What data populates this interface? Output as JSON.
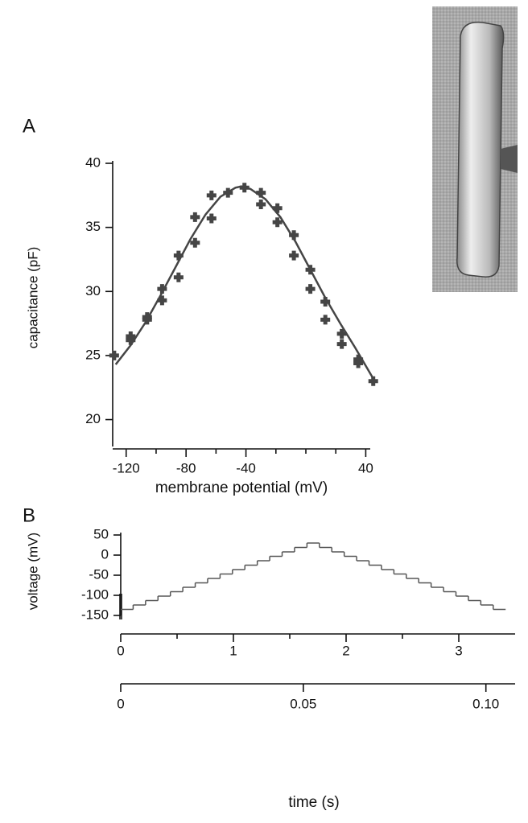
{
  "chart_data": [
    {
      "type": "scatter",
      "panel_label": "A",
      "x_label": "membrane potential (mV)",
      "y_label": "capacitance (pF)",
      "xlim": [
        -129,
        43
      ],
      "ylim": [
        17.9,
        40
      ],
      "xticks": [
        -120,
        -80,
        -40,
        40
      ],
      "xminorticks": [
        -100,
        -60,
        -20,
        0,
        20
      ],
      "yticks": [
        20,
        25,
        30,
        35,
        40
      ],
      "color": "#454545",
      "points": {
        "x": [
          -128,
          -117,
          -117,
          -106,
          -106,
          -96,
          -96,
          -85,
          -85,
          -74,
          -74,
          -63,
          -63,
          -52,
          -41,
          -30,
          -30,
          -19,
          -19,
          -8,
          -8,
          3,
          3,
          13,
          13,
          24,
          24,
          35,
          35,
          45
        ],
        "values": [
          25.0,
          26.5,
          26.2,
          28.0,
          27.8,
          30.2,
          29.3,
          32.8,
          31.1,
          35.8,
          33.8,
          37.5,
          35.7,
          37.7,
          38.1,
          37.7,
          36.8,
          36.5,
          35.4,
          34.4,
          32.8,
          31.7,
          30.2,
          29.2,
          27.8,
          26.7,
          25.9,
          24.7,
          24.4,
          23.0
        ]
      },
      "fit": {
        "x": [
          -127,
          -117,
          -107,
          -97,
          -87,
          -77,
          -67,
          -57,
          -47,
          -43,
          -37,
          -27,
          -17,
          -7,
          3,
          13,
          23,
          33,
          45
        ],
        "values": [
          24.3,
          25.8,
          27.6,
          29.7,
          31.9,
          34.1,
          36.0,
          37.4,
          38.1,
          38.2,
          38.0,
          37.2,
          35.8,
          33.9,
          31.7,
          29.5,
          27.5,
          25.6,
          23.2
        ]
      }
    },
    {
      "type": "step",
      "panel_label": "B",
      "x_label": "time (s)",
      "y_label": "voltage  (mV)",
      "ylim": [
        -150,
        50
      ],
      "yticks": [
        50,
        0,
        -50,
        -100,
        -150
      ],
      "x2lim": [
        0,
        3.5
      ],
      "x2ticks": [
        0,
        1,
        2,
        3
      ],
      "x2minorticks": [
        0.5,
        1.5,
        2.5
      ],
      "xlim": [
        0,
        0.108
      ],
      "xticks": [
        0,
        0.05,
        {
          "value": 0.1,
          "label": "0.10"
        }
      ],
      "color": "#555555",
      "x": [
        0,
        0.0034,
        0.0068,
        0.0102,
        0.0136,
        0.017,
        0.0204,
        0.0238,
        0.0272,
        0.0306,
        0.034,
        0.0374,
        0.0408,
        0.0442,
        0.0476,
        0.051,
        0.0544,
        0.0578,
        0.0612,
        0.0646,
        0.068,
        0.0714,
        0.0748,
        0.0782,
        0.0816,
        0.085,
        0.0884,
        0.0918,
        0.0952,
        0.0986,
        0.102
      ],
      "values": [
        -135,
        -124,
        -113,
        -102,
        -91,
        -80,
        -69,
        -58,
        -47,
        -36,
        -25,
        -14,
        -3,
        8,
        19,
        30,
        19,
        8,
        -3,
        -14,
        -25,
        -36,
        -47,
        -58,
        -69,
        -80,
        -91,
        -102,
        -113,
        -124,
        -135
      ]
    }
  ]
}
